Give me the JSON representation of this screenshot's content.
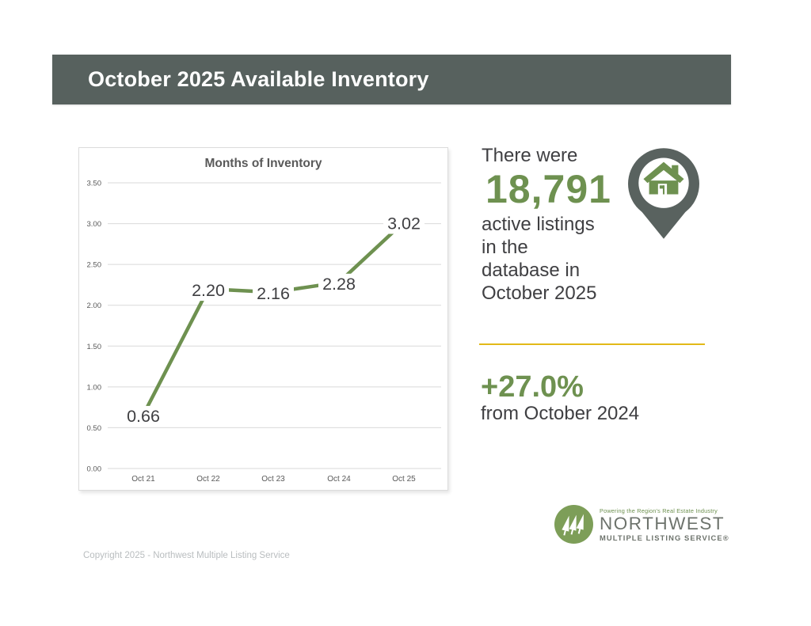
{
  "header": {
    "title": "October 2025 Available Inventory"
  },
  "chart_data": {
    "type": "line",
    "title": "Months of Inventory",
    "categories": [
      "Oct 21",
      "Oct 22",
      "Oct 23",
      "Oct 24",
      "Oct 25"
    ],
    "values": [
      0.66,
      2.2,
      2.16,
      2.28,
      3.02
    ],
    "data_labels": [
      "0.66",
      "2.20",
      "2.16",
      "2.28",
      "3.02"
    ],
    "ylim": [
      0.0,
      3.5
    ],
    "ytick_step": 0.5,
    "ytick_labels": [
      "0.00",
      "0.50",
      "1.00",
      "1.50",
      "2.00",
      "2.50",
      "3.00",
      "3.50"
    ],
    "grid": true,
    "legend": "none",
    "line_color": "#6e9150"
  },
  "stats": {
    "intro": "There were",
    "count": "18,791",
    "desc_lines": [
      "active listings",
      "in the",
      "database in",
      "October 2025"
    ],
    "change": "+27.0%",
    "change_desc": "from October 2024"
  },
  "logo": {
    "tagline": "Powering the Region's Real Estate Industry",
    "name": "NORTHWEST",
    "subtitle": "MULTIPLE LISTING SERVICE®"
  },
  "footer": {
    "copyright": "Copyright 2025 - Northwest Multiple Listing Service"
  },
  "colors": {
    "header_bg": "#57615e",
    "accent_green": "#6e9150",
    "dark_text": "#3f3f42",
    "chart_text": "#595959",
    "gridline": "#d9d9d9",
    "divider_yellow": "#e2b918",
    "logo_gray": "#6d736c",
    "logo_green": "#7d9e58",
    "tagline_green": "#6e9150",
    "muted_gray": "#b9bdbf",
    "pin_gray": "#59625f"
  }
}
